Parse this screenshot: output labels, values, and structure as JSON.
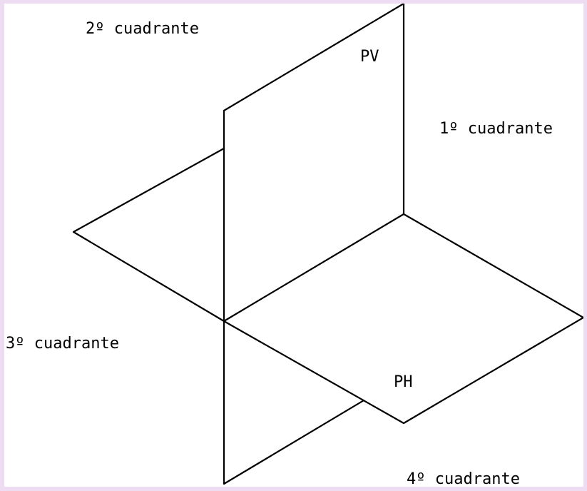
{
  "labels": {
    "pv": "PV",
    "ph": "PH",
    "q1": "1º cuadrante",
    "q2": "2º cuadrante",
    "q3": "3º cuadrante",
    "q4": "4º cuadrante"
  },
  "colors": {
    "background": "#eedcf3",
    "canvas": "#ffffff",
    "line": "#000000"
  }
}
